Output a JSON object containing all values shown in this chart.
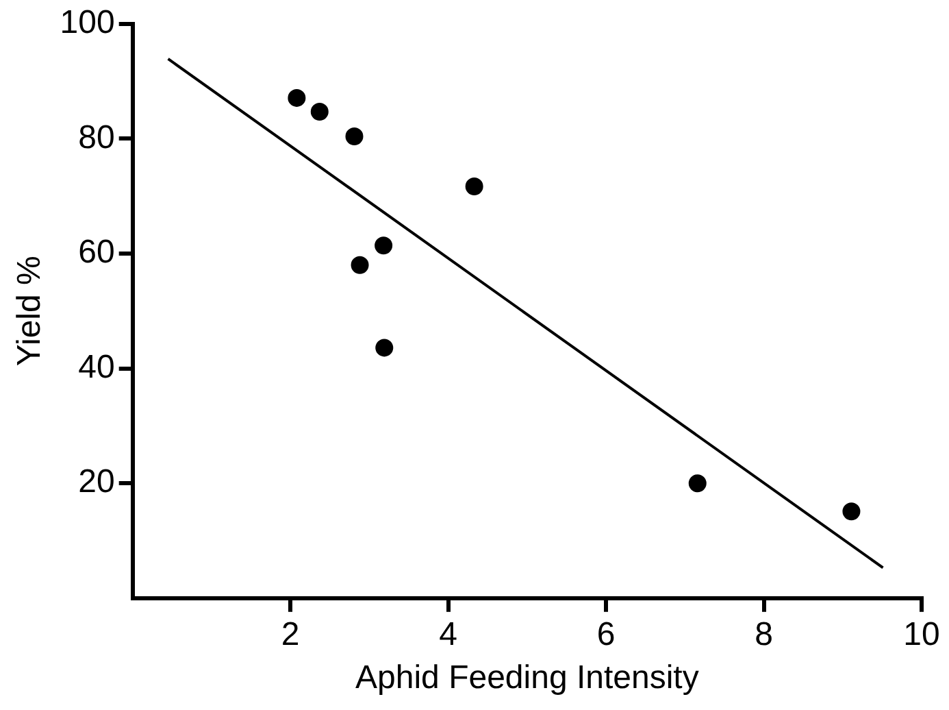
{
  "chart_data": {
    "type": "scatter",
    "xlabel": "Aphid Feeding Intensity",
    "ylabel": "Yield %",
    "xlim": [
      0,
      10
    ],
    "xticks": [
      2,
      4,
      6,
      8,
      10
    ],
    "ylim": [
      0,
      100
    ],
    "yticks": [
      20,
      40,
      60,
      80,
      100
    ],
    "grid": false,
    "legend": false,
    "marker": "circle",
    "series": [
      {
        "color": "#000000",
        "x": [
          2.08,
          2.37,
          2.81,
          2.88,
          3.18,
          3.19,
          4.33,
          7.16,
          9.11
        ],
        "values": [
          87.1,
          84.7,
          80.4,
          58.0,
          61.4,
          43.6,
          71.7,
          20.0,
          15.1
        ]
      },
      {
        "type": "line",
        "color": "#000000",
        "line_style": "solid",
        "marker": "none",
        "x": [
          0.45,
          9.51
        ],
        "values": [
          93.9,
          5.3
        ]
      }
    ]
  }
}
